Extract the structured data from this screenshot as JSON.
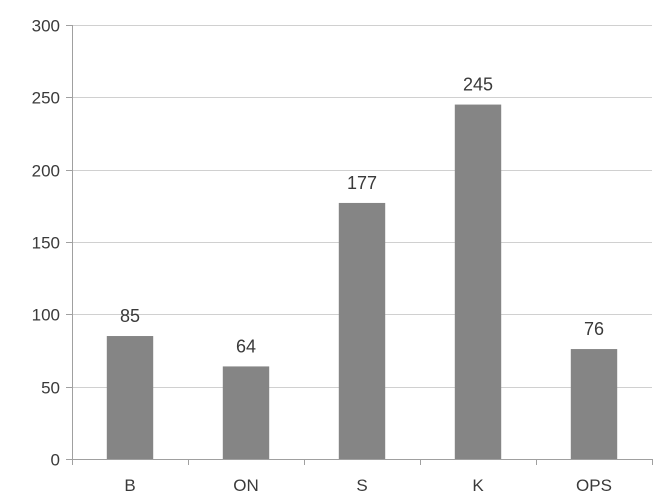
{
  "chart_data": {
    "type": "bar",
    "title": "",
    "xlabel": "",
    "ylabel": "",
    "categories": [
      "B",
      "ON",
      "S",
      "K",
      "OPS"
    ],
    "values": [
      85,
      64,
      177,
      245,
      76
    ],
    "data_labels": [
      "85",
      "64",
      "177",
      "245",
      "76"
    ],
    "ylim": [
      0,
      300
    ],
    "y_ticks": [
      0,
      50,
      100,
      150,
      200,
      250,
      300
    ],
    "y_tick_labels": [
      "0",
      "50",
      "100",
      "150",
      "200",
      "250",
      "300"
    ],
    "grid": true,
    "legend": "none",
    "colors": {
      "bar": "#858585",
      "gridline": "#d0d0d0",
      "axis": "#a0a0a0",
      "text": "#3a3a3a"
    }
  }
}
